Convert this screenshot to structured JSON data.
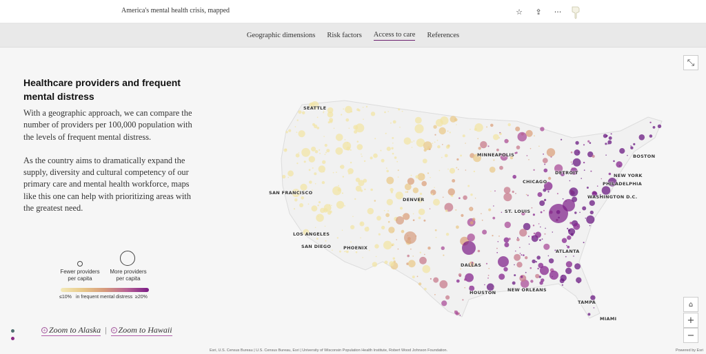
{
  "header": {
    "story_title": "America's mental health crisis, mapped",
    "actions": [
      {
        "name": "favorite-icon",
        "glyph": "☆"
      },
      {
        "name": "share-icon",
        "glyph": "⇪"
      },
      {
        "name": "more-icon",
        "glyph": "···"
      }
    ]
  },
  "nav": {
    "tabs": [
      {
        "label": "Geographic dimensions",
        "active": false
      },
      {
        "label": "Risk factors",
        "active": false
      },
      {
        "label": "Access to care",
        "active": true
      },
      {
        "label": "References",
        "active": false
      }
    ]
  },
  "panel": {
    "title": "Healthcare providers and frequent mental distress",
    "paragraph1": "With a geographic approach, we can compare the number of providers per 100,000 population with the levels of frequent mental distress.",
    "paragraph2": "As the country aims to dramatically expand the supply, diversity and cultural competency of our primary care and mental health workforce, maps like this one can help with prioritizing areas with the greatest need."
  },
  "legend": {
    "fewer_label": "Fewer providers per capita",
    "more_label": "More providers per capita",
    "scale_min": "≤10%",
    "scale_caption": "in frequent mental distress",
    "scale_max": "≥20%",
    "color_low": "#f3e9b8",
    "color_high": "#7a1a86"
  },
  "zoom_links": {
    "alaska": "Zoom to Alaska",
    "separator": "|",
    "hawaii": "Zoom to Hawaii"
  },
  "map": {
    "cities": [
      {
        "name": "SEATTLE"
      },
      {
        "name": "MINNEAPOLIS"
      },
      {
        "name": "BOSTON"
      },
      {
        "name": "DETROIT"
      },
      {
        "name": "NEW YORK"
      },
      {
        "name": "CHICAGO"
      },
      {
        "name": "PHILADELPHIA"
      },
      {
        "name": "SAN FRANCISCO"
      },
      {
        "name": "DENVER"
      },
      {
        "name": "WASHINGTON D.C."
      },
      {
        "name": "ST. LOUIS"
      },
      {
        "name": "LOS ANGELES"
      },
      {
        "name": "SAN DIEGO"
      },
      {
        "name": "PHOENIX"
      },
      {
        "name": "ATLANTA"
      },
      {
        "name": "DALLAS"
      },
      {
        "name": "HOUSTON"
      },
      {
        "name": "NEW ORLEANS"
      },
      {
        "name": "TAMPA"
      },
      {
        "name": "MIAMI"
      }
    ]
  },
  "controls": {
    "expand": "⤡",
    "home": "⌂",
    "zoom_in": "+",
    "zoom_out": "−"
  },
  "footer": {
    "attribution": "Esri, U.S. Census Bureau | U.S. Census Bureau, Esri | University of Wisconsin Population Health Institute, Robert Wood Johnson Foundation.",
    "powered_by": "Powered by Esri"
  }
}
